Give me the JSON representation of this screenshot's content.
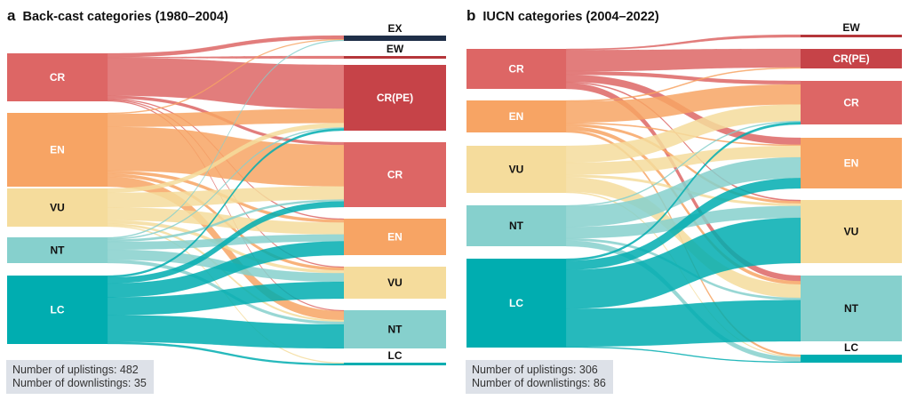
{
  "colors": {
    "EX": "#1f2f48",
    "EW": "#b5363a",
    "CRPE": "#c64348",
    "CR": "#dd6665",
    "EN": "#f7a464",
    "VU": "#f5dc9c",
    "NT": "#86d0cd",
    "LC": "#00adb0"
  },
  "chart_data": [
    {
      "type": "sankey",
      "panel_letter": "a",
      "title": "Back-cast categories (1980–2004)",
      "source_nodes": [
        "CR",
        "EN",
        "VU",
        "NT",
        "LC"
      ],
      "target_nodes": [
        "EX",
        "EW",
        "CR(PE)",
        "CR",
        "EN",
        "VU",
        "NT",
        "LC"
      ],
      "flows": [
        {
          "from": "CR",
          "to": "EX",
          "value": 4
        },
        {
          "from": "CR",
          "to": "EW",
          "value": 1
        },
        {
          "from": "CR",
          "to": "CR(PE)",
          "value": 40
        },
        {
          "from": "CR",
          "to": "CR",
          "value": 3
        },
        {
          "from": "CR",
          "to": "EN",
          "value": 1
        },
        {
          "from": "CR",
          "to": "VU",
          "value": 1
        },
        {
          "from": "CR",
          "to": "NT",
          "value": 1
        },
        {
          "from": "EN",
          "to": "EX",
          "value": 1
        },
        {
          "from": "EN",
          "to": "CR(PE)",
          "value": 13
        },
        {
          "from": "EN",
          "to": "CR",
          "value": 44
        },
        {
          "from": "EN",
          "to": "EN",
          "value": 3
        },
        {
          "from": "EN",
          "to": "VU",
          "value": 3
        },
        {
          "from": "EN",
          "to": "NT",
          "value": 10
        },
        {
          "from": "VU",
          "to": "CR(PE)",
          "value": 4
        },
        {
          "from": "VU",
          "to": "CR",
          "value": 14
        },
        {
          "from": "VU",
          "to": "EN",
          "value": 12
        },
        {
          "from": "VU",
          "to": "VU",
          "value": 3
        },
        {
          "from": "VU",
          "to": "NT",
          "value": 2
        },
        {
          "from": "VU",
          "to": "LC",
          "value": 1
        },
        {
          "from": "NT",
          "to": "EX",
          "value": 1
        },
        {
          "from": "NT",
          "to": "CR(PE)",
          "value": 1
        },
        {
          "from": "NT",
          "to": "CR",
          "value": 2
        },
        {
          "from": "NT",
          "to": "EN",
          "value": 7
        },
        {
          "from": "NT",
          "to": "VU",
          "value": 9
        },
        {
          "from": "NT",
          "to": "NT",
          "value": 3
        },
        {
          "from": "LC",
          "to": "CR(PE)",
          "value": 2
        },
        {
          "from": "LC",
          "to": "CR",
          "value": 6
        },
        {
          "from": "LC",
          "to": "EN",
          "value": 14
        },
        {
          "from": "LC",
          "to": "VU",
          "value": 18
        },
        {
          "from": "LC",
          "to": "NT",
          "value": 27
        },
        {
          "from": "LC",
          "to": "LC",
          "value": 2
        }
      ],
      "summary": {
        "uplistings_label": "Number of uplistings: 482",
        "downlistings_label": "Number of downlistings: 35",
        "uplistings": 482,
        "downlistings": 35
      }
    },
    {
      "type": "sankey",
      "panel_letter": "b",
      "title": "IUCN categories (2004–2022)",
      "source_nodes": [
        "CR",
        "EN",
        "VU",
        "NT",
        "LC"
      ],
      "target_nodes": [
        "EW",
        "CR(PE)",
        "CR",
        "EN",
        "VU",
        "NT",
        "LC"
      ],
      "flows": [
        {
          "from": "CR",
          "to": "EW",
          "value": 1
        },
        {
          "from": "CR",
          "to": "CR(PE)",
          "value": 18
        },
        {
          "from": "CR",
          "to": "CR",
          "value": 3
        },
        {
          "from": "CR",
          "to": "EN",
          "value": 6
        },
        {
          "from": "CR",
          "to": "VU",
          "value": 1
        },
        {
          "from": "CR",
          "to": "NT",
          "value": 5
        },
        {
          "from": "EN",
          "to": "CR(PE)",
          "value": 1
        },
        {
          "from": "EN",
          "to": "CR",
          "value": 17
        },
        {
          "from": "EN",
          "to": "EN",
          "value": 1
        },
        {
          "from": "EN",
          "to": "VU",
          "value": 2
        },
        {
          "from": "EN",
          "to": "NT",
          "value": 3
        },
        {
          "from": "EN",
          "to": "LC",
          "value": 2
        },
        {
          "from": "VU",
          "to": "CR",
          "value": 14
        },
        {
          "from": "VU",
          "to": "EN",
          "value": 10
        },
        {
          "from": "VU",
          "to": "VU",
          "value": 2
        },
        {
          "from": "VU",
          "to": "NT",
          "value": 12
        },
        {
          "from": "VU",
          "to": "LC",
          "value": 1
        },
        {
          "from": "NT",
          "to": "CR",
          "value": 1
        },
        {
          "from": "NT",
          "to": "EN",
          "value": 18
        },
        {
          "from": "NT",
          "to": "VU",
          "value": 10
        },
        {
          "from": "NT",
          "to": "NT",
          "value": 2
        },
        {
          "from": "NT",
          "to": "LC",
          "value": 5
        },
        {
          "from": "LC",
          "to": "CR",
          "value": 2
        },
        {
          "from": "LC",
          "to": "EN",
          "value": 9
        },
        {
          "from": "LC",
          "to": "VU",
          "value": 38
        },
        {
          "from": "LC",
          "to": "NT",
          "value": 37
        },
        {
          "from": "LC",
          "to": "LC",
          "value": 1
        }
      ],
      "summary": {
        "uplistings_label": "Number of uplistings: 306",
        "downlistings_label": "Number of downlistings: 86",
        "uplistings": 306,
        "downlistings": 86
      }
    }
  ]
}
